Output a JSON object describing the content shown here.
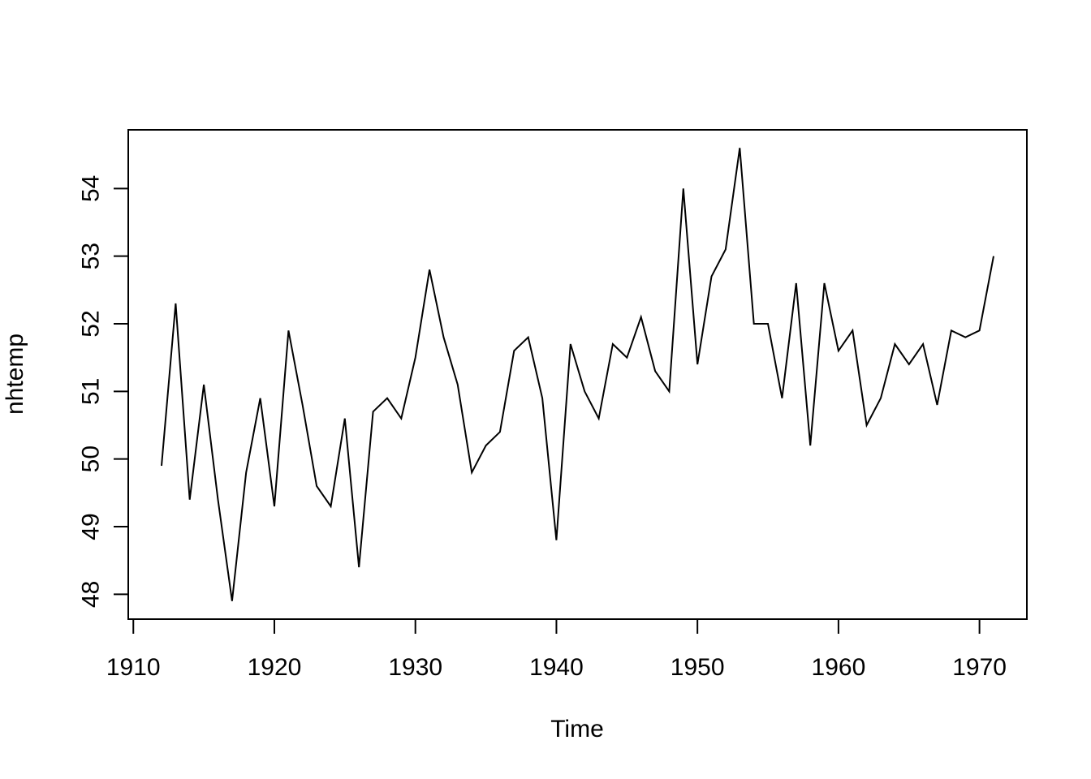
{
  "figure": {
    "background": "#ffffff",
    "foreground": "#000000"
  },
  "chart_data": {
    "type": "line",
    "title": "",
    "xlabel": "Time",
    "ylabel": "nhtemp",
    "grid": false,
    "legend_position": "none",
    "line_color": "#000000",
    "background": "#ffffff",
    "x_ticks": [
      1910,
      1920,
      1930,
      1940,
      1950,
      1960,
      1970
    ],
    "y_ticks": [
      48,
      49,
      50,
      51,
      52,
      53,
      54
    ],
    "xlim": [
      1909.64,
      1973.36
    ],
    "ylim": [
      47.632,
      54.868
    ],
    "series": [
      {
        "name": "nhtemp",
        "x": [
          1912,
          1913,
          1914,
          1915,
          1916,
          1917,
          1918,
          1919,
          1920,
          1921,
          1922,
          1923,
          1924,
          1925,
          1926,
          1927,
          1928,
          1929,
          1930,
          1931,
          1932,
          1933,
          1934,
          1935,
          1936,
          1937,
          1938,
          1939,
          1940,
          1941,
          1942,
          1943,
          1944,
          1945,
          1946,
          1947,
          1948,
          1949,
          1950,
          1951,
          1952,
          1953,
          1954,
          1955,
          1956,
          1957,
          1958,
          1959,
          1960,
          1961,
          1962,
          1963,
          1964,
          1965,
          1966,
          1967,
          1968,
          1969,
          1970,
          1971
        ],
        "values": [
          49.9,
          52.3,
          49.4,
          51.1,
          49.4,
          47.9,
          49.8,
          50.9,
          49.3,
          51.9,
          50.8,
          49.6,
          49.3,
          50.6,
          48.4,
          50.7,
          50.9,
          50.6,
          51.5,
          52.8,
          51.8,
          51.1,
          49.8,
          50.2,
          50.4,
          51.6,
          51.8,
          50.9,
          48.8,
          51.7,
          51.0,
          50.6,
          51.7,
          51.5,
          52.1,
          51.3,
          51.0,
          54.0,
          51.4,
          52.7,
          53.1,
          54.6,
          52.0,
          52.0,
          50.9,
          52.6,
          50.2,
          52.6,
          51.6,
          51.9,
          50.5,
          50.9,
          51.7,
          51.4,
          51.7,
          50.8,
          51.9,
          51.8,
          51.9,
          53.0
        ]
      }
    ]
  }
}
